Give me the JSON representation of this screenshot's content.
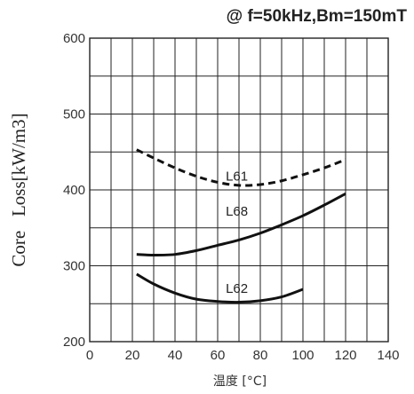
{
  "chart_data": {
    "type": "line",
    "title": "@ f=50kHz,Bm=150mT",
    "xlabel": "温度 [°C]",
    "ylabel": "Core   Loss[kW/m3]",
    "xlim": [
      0,
      140
    ],
    "ylim": [
      200,
      600
    ],
    "xticks": [
      0,
      20,
      40,
      60,
      80,
      100,
      120,
      140
    ],
    "yticks": [
      200,
      300,
      400,
      500,
      600
    ],
    "grid": true,
    "series": [
      {
        "name": "L61",
        "style": "dashed",
        "x": [
          22,
          30,
          40,
          50,
          60,
          70,
          80,
          90,
          100,
          110,
          120
        ],
        "y": [
          453,
          442,
          429,
          418,
          410,
          406,
          407,
          412,
          420,
          429,
          440
        ]
      },
      {
        "name": "L68",
        "style": "solid",
        "x": [
          22,
          30,
          40,
          50,
          60,
          70,
          80,
          90,
          100,
          110,
          120
        ],
        "y": [
          315,
          314,
          315,
          320,
          327,
          334,
          343,
          354,
          366,
          380,
          395
        ]
      },
      {
        "name": "L62",
        "style": "solid",
        "x": [
          22,
          30,
          40,
          50,
          60,
          70,
          80,
          90,
          100
        ],
        "y": [
          289,
          276,
          264,
          256,
          253,
          252,
          254,
          259,
          269
        ]
      }
    ]
  }
}
